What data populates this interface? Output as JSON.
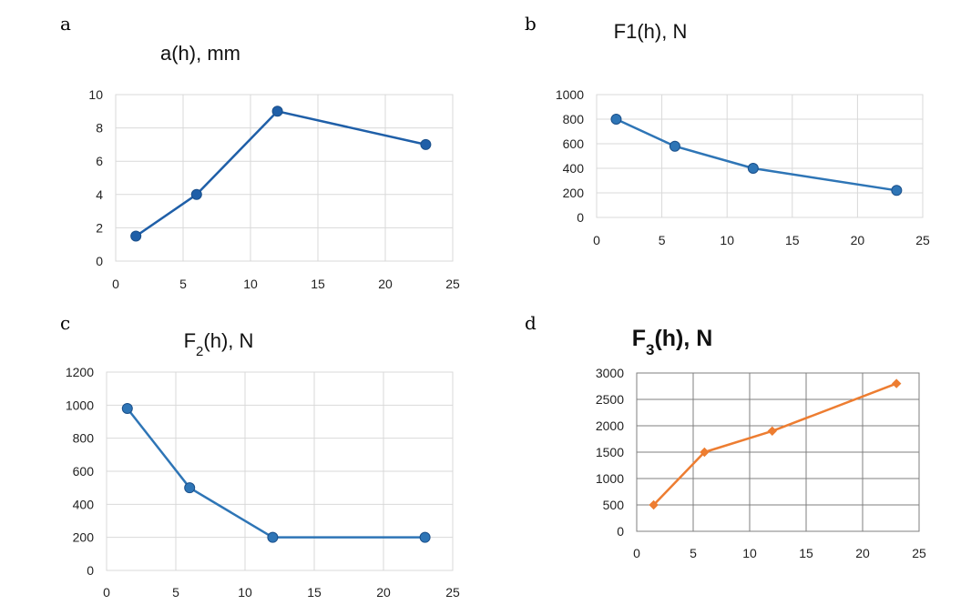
{
  "chart_data": [
    {
      "panel": "a",
      "type": "line",
      "title": "a(h), mm",
      "x": [
        1.5,
        6,
        12,
        23
      ],
      "series": [
        {
          "values": [
            1.5,
            4,
            9,
            7
          ]
        }
      ],
      "xlim": [
        0,
        25
      ],
      "ylim": [
        0,
        10
      ],
      "xticks": [
        0,
        5,
        10,
        15,
        20,
        25
      ],
      "yticks": [
        0,
        2,
        4,
        6,
        8,
        10
      ],
      "color": "#1f5fa8",
      "marker": "circle",
      "grid": true
    },
    {
      "panel": "b",
      "type": "line",
      "title": "F1(h), N",
      "x": [
        1.5,
        6,
        12,
        23
      ],
      "series": [
        {
          "values": [
            800,
            580,
            400,
            220
          ]
        }
      ],
      "xlim": [
        0,
        25
      ],
      "ylim": [
        0,
        1000
      ],
      "xticks": [
        0,
        5,
        10,
        15,
        20,
        25
      ],
      "yticks": [
        0,
        200,
        400,
        600,
        800,
        1000
      ],
      "color": "#2e75b6",
      "marker": "circle",
      "grid": true
    },
    {
      "panel": "c",
      "type": "line",
      "title": "F2(h), N",
      "title_main": "F",
      "title_sub": "2",
      "title_rest": "(h), N",
      "x": [
        1.5,
        6,
        12,
        23
      ],
      "series": [
        {
          "values": [
            980,
            500,
            200,
            200
          ]
        }
      ],
      "xlim": [
        0,
        25
      ],
      "ylim": [
        0,
        1200
      ],
      "xticks": [
        0,
        5,
        10,
        15,
        20,
        25
      ],
      "yticks": [
        0,
        200,
        400,
        600,
        800,
        1000,
        1200
      ],
      "color": "#2e75b6",
      "marker": "circle",
      "grid": true
    },
    {
      "panel": "d",
      "type": "line",
      "title": "F3(h), N",
      "title_main": "F",
      "title_sub": "3",
      "title_rest": "(h), N",
      "x": [
        1.5,
        6,
        12,
        23
      ],
      "series": [
        {
          "values": [
            500,
            1500,
            1900,
            2800
          ]
        }
      ],
      "xlim": [
        0,
        25
      ],
      "ylim": [
        0,
        3000
      ],
      "xticks": [
        0,
        5,
        10,
        15,
        20,
        25
      ],
      "yticks": [
        0,
        500,
        1000,
        1500,
        2000,
        2500,
        3000
      ],
      "color": "#ed7d31",
      "marker": "diamond",
      "grid": true
    }
  ]
}
